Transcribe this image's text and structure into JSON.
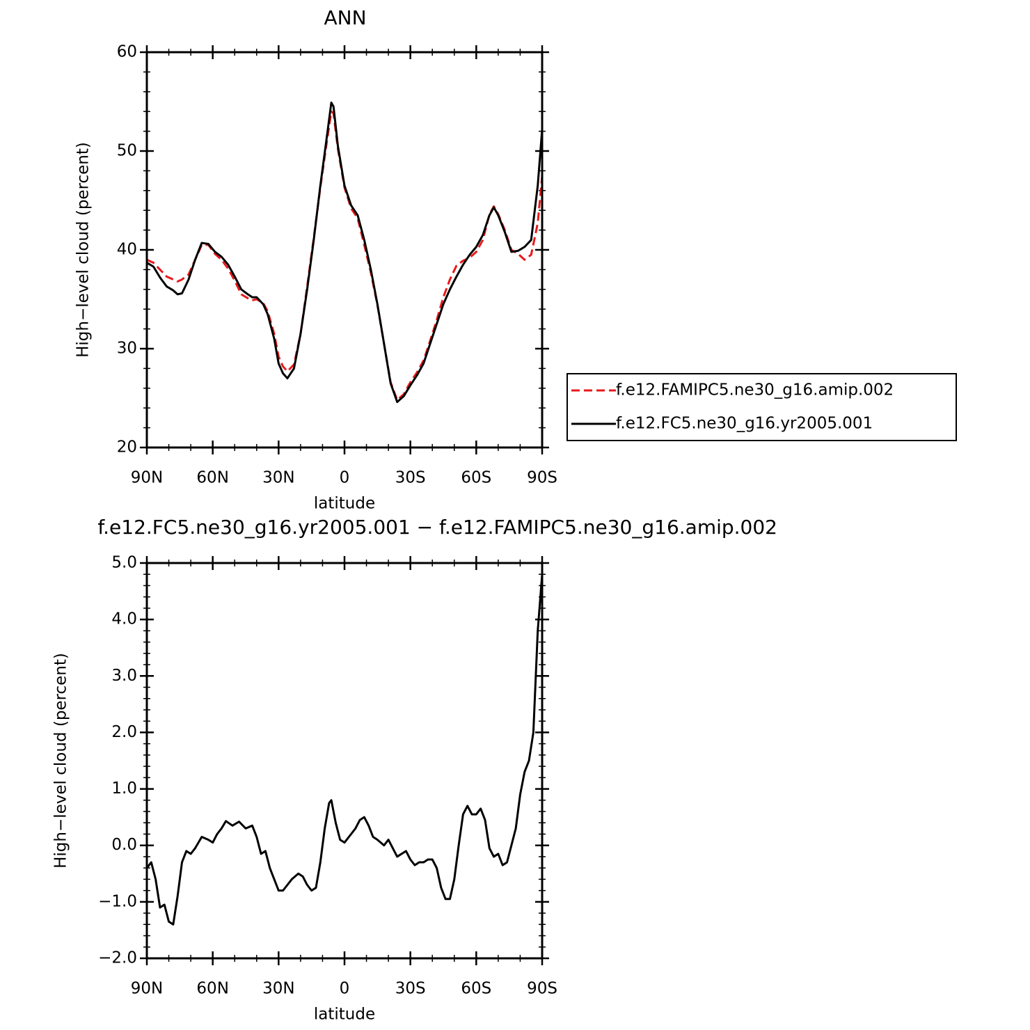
{
  "chart_data": [
    {
      "type": "line",
      "title": "ANN",
      "xlabel": "latitude",
      "ylabel": "High−level cloud (percent)",
      "x": [
        90,
        87,
        84,
        81,
        78,
        76,
        74,
        71,
        68,
        65,
        62,
        59,
        56,
        53,
        50,
        47,
        44,
        42,
        40,
        37,
        35,
        32,
        30,
        28,
        26,
        23,
        20,
        17,
        14,
        11,
        8,
        6,
        5,
        3,
        0,
        -3,
        -6,
        -9,
        -12,
        -15,
        -18,
        -21,
        -24,
        -27,
        -30,
        -33,
        -36,
        -39,
        -42,
        -45,
        -48,
        -51,
        -54,
        -57,
        -60,
        -63,
        -66,
        -68,
        -70,
        -73,
        -76,
        -79,
        -82,
        -85,
        -88,
        -90
      ],
      "series": [
        {
          "name": "f.e12.FAMIPC5.ne30_g16.amip.002",
          "color": "#e8191b",
          "linestyle": "dashed",
          "values": [
            39.0,
            38.7,
            38.0,
            37.3,
            37.0,
            36.8,
            37.0,
            37.5,
            39.0,
            40.5,
            40.5,
            39.6,
            39.0,
            38.1,
            36.9,
            35.5,
            35.1,
            34.9,
            35.0,
            34.6,
            33.8,
            31.5,
            29.2,
            28.2,
            27.7,
            28.4,
            31.5,
            36.3,
            41.2,
            46.3,
            51.0,
            54.0,
            53.8,
            50.2,
            46.3,
            44.2,
            43.2,
            40.5,
            37.7,
            34.4,
            30.5,
            26.6,
            24.8,
            25.4,
            26.6,
            27.6,
            28.8,
            30.8,
            32.9,
            35.2,
            37.0,
            38.4,
            38.9,
            39.2,
            39.8,
            41.0,
            43.6,
            44.4,
            43.6,
            42.0,
            40.0,
            39.6,
            39.0,
            39.5,
            42.7,
            47.5
          ]
        },
        {
          "name": "f.e12.FC5.ne30_g16.yr2005.001",
          "color": "#000000",
          "linestyle": "solid",
          "values": [
            38.7,
            38.3,
            37.2,
            36.3,
            35.9,
            35.5,
            35.6,
            37.0,
            39.0,
            40.7,
            40.6,
            39.8,
            39.3,
            38.5,
            37.3,
            36.0,
            35.5,
            35.2,
            35.2,
            34.5,
            33.5,
            31.0,
            28.5,
            27.5,
            27.0,
            28.0,
            31.5,
            36.0,
            41.0,
            46.5,
            51.5,
            54.9,
            54.5,
            50.5,
            46.5,
            44.5,
            43.5,
            41.0,
            38.0,
            34.5,
            30.5,
            26.5,
            24.6,
            25.2,
            26.3,
            27.3,
            28.5,
            30.5,
            32.5,
            34.5,
            36.0,
            37.3,
            38.5,
            39.5,
            40.3,
            41.5,
            43.5,
            44.3,
            43.5,
            41.8,
            39.8,
            39.9,
            40.3,
            41.0,
            46.5,
            52.2
          ]
        }
      ],
      "xlim": [
        90,
        -90
      ],
      "xticks": [
        {
          "value": 90,
          "label": "90N"
        },
        {
          "value": 60,
          "label": "60N"
        },
        {
          "value": 30,
          "label": "30N"
        },
        0,
        {
          "value": -30,
          "label": "30S"
        },
        {
          "value": -60,
          "label": "60S"
        },
        {
          "value": -90,
          "label": "90S"
        }
      ],
      "ylim": [
        20,
        60
      ],
      "yticks": [
        20,
        30,
        40,
        50,
        60
      ],
      "legend": "right"
    },
    {
      "type": "line",
      "title": "f.e12.FC5.ne30_g16.yr2005.001 − f.e12.FAMIPC5.ne30_g16.amip.002",
      "xlabel": "latitude",
      "ylabel": "High−level cloud (percent)",
      "x": [
        90,
        88,
        86,
        84,
        82,
        80,
        78,
        76,
        74,
        72,
        70,
        68,
        65,
        62,
        60,
        58,
        56,
        54,
        51,
        48,
        45,
        42,
        40,
        38,
        36,
        34,
        32,
        30,
        28,
        26,
        24,
        21,
        19,
        17,
        15,
        13,
        11,
        9,
        7,
        6,
        4,
        2,
        0,
        -3,
        -5,
        -7,
        -9,
        -11,
        -13,
        -15,
        -18,
        -20,
        -22,
        -24,
        -26,
        -28,
        -30,
        -32,
        -34,
        -36,
        -38,
        -40,
        -42,
        -44,
        -46,
        -48,
        -50,
        -52,
        -54,
        -56,
        -58,
        -60,
        -62,
        -64,
        -66,
        -68,
        -70,
        -72,
        -74,
        -76,
        -78,
        -80,
        -82,
        -84,
        -86,
        -88,
        -90
      ],
      "series": [
        {
          "color": "#000000",
          "linestyle": "solid",
          "values": [
            -0.4,
            -0.3,
            -0.6,
            -1.1,
            -1.05,
            -1.35,
            -1.4,
            -0.9,
            -0.3,
            -0.1,
            -0.15,
            -0.05,
            0.15,
            0.1,
            0.05,
            0.2,
            0.3,
            0.43,
            0.35,
            0.42,
            0.3,
            0.35,
            0.15,
            -0.15,
            -0.1,
            -0.4,
            -0.6,
            -0.8,
            -0.8,
            -0.7,
            -0.6,
            -0.5,
            -0.55,
            -0.7,
            -0.8,
            -0.75,
            -0.3,
            0.3,
            0.75,
            0.8,
            0.4,
            0.1,
            0.05,
            0.2,
            0.3,
            0.45,
            0.5,
            0.35,
            0.15,
            0.1,
            0.0,
            0.1,
            -0.05,
            -0.2,
            -0.15,
            -0.1,
            -0.25,
            -0.35,
            -0.3,
            -0.3,
            -0.25,
            -0.25,
            -0.4,
            -0.75,
            -0.95,
            -0.95,
            -0.6,
            0.0,
            0.55,
            0.7,
            0.55,
            0.55,
            0.65,
            0.45,
            -0.05,
            -0.2,
            -0.15,
            -0.35,
            -0.3,
            0.0,
            0.3,
            0.9,
            1.3,
            1.5,
            2.0,
            3.8,
            4.8
          ]
        }
      ],
      "xlim": [
        90,
        -90
      ],
      "xticks": [
        {
          "value": 90,
          "label": "90N"
        },
        {
          "value": 60,
          "label": "60N"
        },
        {
          "value": 30,
          "label": "30N"
        },
        0,
        {
          "value": -30,
          "label": "30S"
        },
        {
          "value": -60,
          "label": "60S"
        },
        {
          "value": -90,
          "label": "90S"
        }
      ],
      "ylim": [
        -2,
        5
      ],
      "yticks": [
        {
          "value": -2,
          "label": "−2.0"
        },
        {
          "value": -1,
          "label": "−1.0"
        },
        {
          "value": 0,
          "label": "0.0"
        },
        {
          "value": 1,
          "label": "1.0"
        },
        {
          "value": 2,
          "label": "2.0"
        },
        {
          "value": 3,
          "label": "3.0"
        },
        {
          "value": 4,
          "label": "4.0"
        },
        {
          "value": 5,
          "label": "5.0"
        }
      ]
    }
  ]
}
